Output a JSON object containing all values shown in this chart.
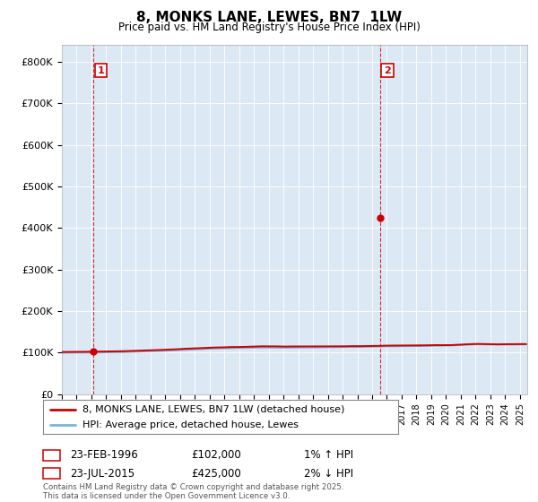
{
  "title": "8, MONKS LANE, LEWES, BN7  1LW",
  "subtitle": "Price paid vs. HM Land Registry's House Price Index (HPI)",
  "ylabel_ticks": [
    "£0",
    "£100K",
    "£200K",
    "£300K",
    "£400K",
    "£500K",
    "£600K",
    "£700K",
    "£800K"
  ],
  "ytick_vals": [
    0,
    100000,
    200000,
    300000,
    400000,
    500000,
    600000,
    700000,
    800000
  ],
  "ylim": [
    0,
    840000
  ],
  "xlim_start": 1994.0,
  "xlim_end": 2025.5,
  "hpi_color": "#7ab4d8",
  "price_color": "#cc0000",
  "background_color": "#ffffff",
  "plot_bg_color": "#dce9f5",
  "grid_color": "#ffffff",
  "sale1_x": 1996.15,
  "sale1_y": 102000,
  "sale1_label": "1",
  "sale1_date": "23-FEB-1996",
  "sale1_price": "£102,000",
  "sale1_hpi": "1% ↑ HPI",
  "sale2_x": 2015.55,
  "sale2_y": 425000,
  "sale2_label": "2",
  "sale2_date": "23-JUL-2015",
  "sale2_price": "£425,000",
  "sale2_hpi": "2% ↓ HPI",
  "legend_line1": "8, MONKS LANE, LEWES, BN7 1LW (detached house)",
  "legend_line2": "HPI: Average price, detached house, Lewes",
  "footer": "Contains HM Land Registry data © Crown copyright and database right 2025.\nThis data is licensed under the Open Government Licence v3.0."
}
